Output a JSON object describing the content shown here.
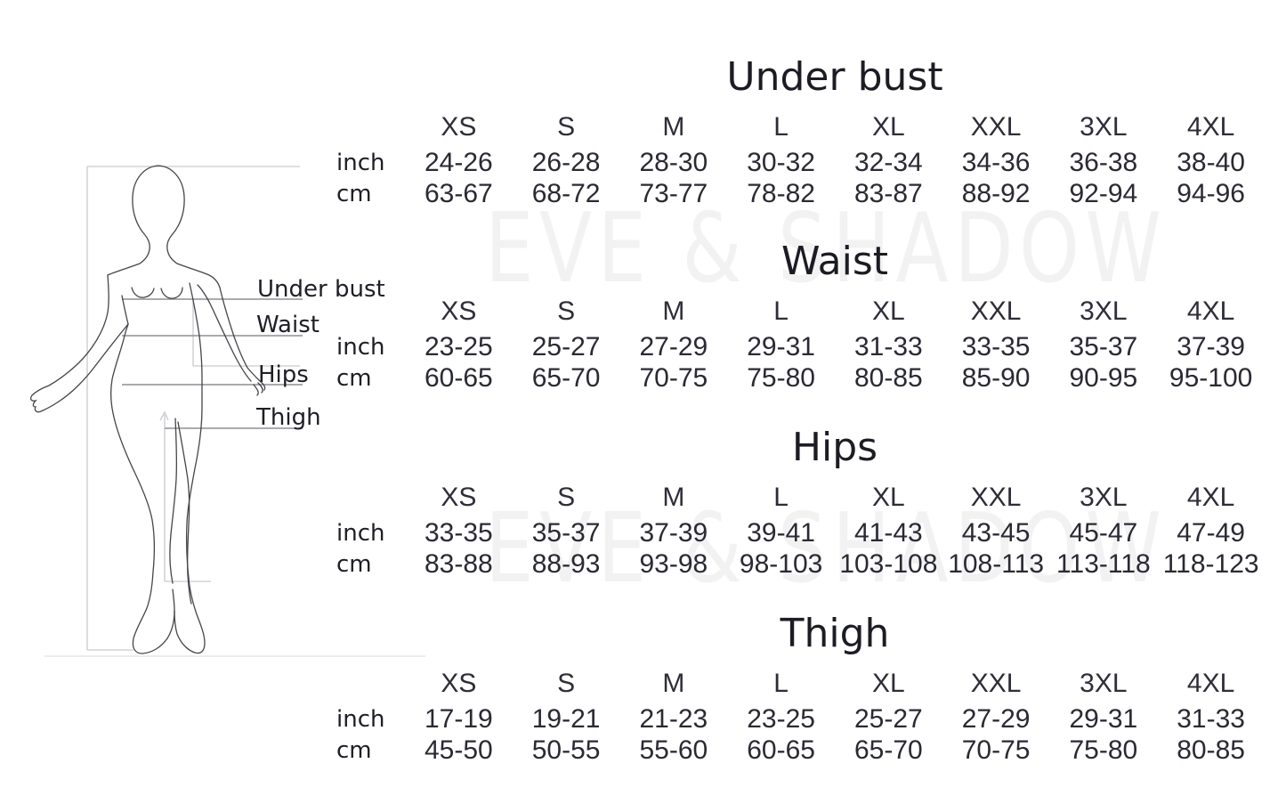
{
  "watermark": "EVE & SHADOW",
  "figure": {
    "under_bust": "Under bust",
    "waist": "Waist",
    "hips": "Hips",
    "thigh": "Thigh"
  },
  "units": {
    "inch": "inch",
    "cm": "cm"
  },
  "sizes": [
    "XS",
    "S",
    "M",
    "L",
    "XL",
    "XXL",
    "3XL",
    "4XL"
  ],
  "sections": [
    {
      "title": "Under bust",
      "inch": [
        "24-26",
        "26-28",
        "28-30",
        "30-32",
        "32-34",
        "34-36",
        "36-38",
        "38-40"
      ],
      "cm": [
        "63-67",
        "68-72",
        "73-77",
        "78-82",
        "83-87",
        "88-92",
        "92-94",
        "94-96"
      ]
    },
    {
      "title": "Waist",
      "inch": [
        "23-25",
        "25-27",
        "27-29",
        "29-31",
        "31-33",
        "33-35",
        "35-37",
        "37-39"
      ],
      "cm": [
        "60-65",
        "65-70",
        "70-75",
        "75-80",
        "80-85",
        "85-90",
        "90-95",
        "95-100"
      ]
    },
    {
      "title": "Hips",
      "inch": [
        "33-35",
        "35-37",
        "37-39",
        "39-41",
        "41-43",
        "43-45",
        "45-47",
        "47-49"
      ],
      "cm": [
        "83-88",
        "88-93",
        "93-98",
        "98-103",
        "103-108",
        "108-113",
        "113-118",
        "118-123"
      ]
    },
    {
      "title": "Thigh",
      "inch": [
        "17-19",
        "19-21",
        "21-23",
        "23-25",
        "25-27",
        "27-29",
        "29-31",
        "31-33"
      ],
      "cm": [
        "45-50",
        "50-55",
        "55-60",
        "60-65",
        "65-70",
        "70-75",
        "75-80",
        "80-85"
      ]
    }
  ]
}
